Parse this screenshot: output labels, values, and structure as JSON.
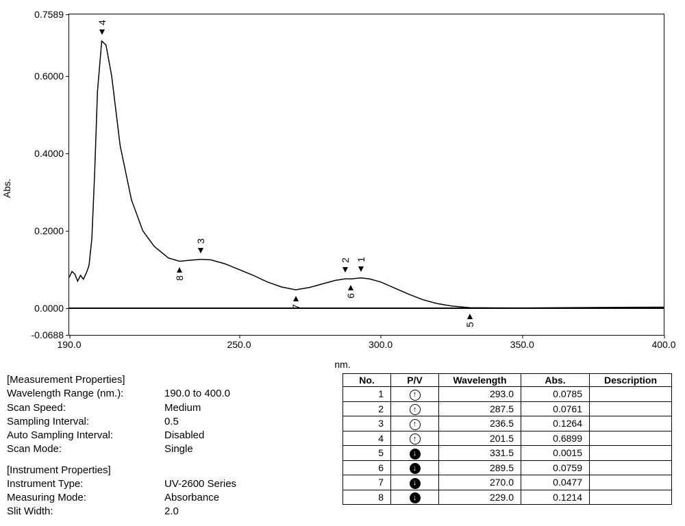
{
  "chart": {
    "type": "line",
    "xlabel": "nm.",
    "ylabel": "Abs.",
    "xlim": [
      190.0,
      400.0
    ],
    "ylim": [
      -0.0688,
      0.7589
    ],
    "xticks": [
      190.0,
      250.0,
      300.0,
      350.0,
      400.0
    ],
    "xtick_labels": [
      "190.0",
      "250.0",
      "300.0",
      "350.0",
      "400.0"
    ],
    "yticks": [
      -0.0688,
      0.0,
      0.2,
      0.4,
      0.6,
      0.7589
    ],
    "ytick_labels": [
      "-0.0688",
      "0.0000",
      "0.2000",
      "0.4000",
      "0.6000",
      "0.7589"
    ],
    "line_color": "#000000",
    "line_width": 1.5,
    "background_color": "#ffffff",
    "zero_line_color": "#000000",
    "curve": [
      [
        190.0,
        0.08
      ],
      [
        191.0,
        0.095
      ],
      [
        192.0,
        0.088
      ],
      [
        193.0,
        0.07
      ],
      [
        194.0,
        0.085
      ],
      [
        195.0,
        0.075
      ],
      [
        196.0,
        0.09
      ],
      [
        197.0,
        0.11
      ],
      [
        198.0,
        0.18
      ],
      [
        199.0,
        0.35
      ],
      [
        200.0,
        0.56
      ],
      [
        201.5,
        0.6899
      ],
      [
        203.0,
        0.68
      ],
      [
        205.0,
        0.6
      ],
      [
        208.0,
        0.42
      ],
      [
        212.0,
        0.28
      ],
      [
        216.0,
        0.2
      ],
      [
        220.0,
        0.16
      ],
      [
        225.0,
        0.13
      ],
      [
        229.0,
        0.1214
      ],
      [
        232.0,
        0.1235
      ],
      [
        236.5,
        0.1264
      ],
      [
        240.0,
        0.125
      ],
      [
        245.0,
        0.115
      ],
      [
        250.0,
        0.1
      ],
      [
        255.0,
        0.085
      ],
      [
        260.0,
        0.068
      ],
      [
        265.0,
        0.055
      ],
      [
        270.0,
        0.0477
      ],
      [
        275.0,
        0.054
      ],
      [
        280.0,
        0.064
      ],
      [
        284.0,
        0.072
      ],
      [
        287.5,
        0.0761
      ],
      [
        289.5,
        0.0759
      ],
      [
        293.0,
        0.0785
      ],
      [
        296.0,
        0.076
      ],
      [
        300.0,
        0.068
      ],
      [
        305.0,
        0.052
      ],
      [
        310.0,
        0.036
      ],
      [
        315.0,
        0.022
      ],
      [
        320.0,
        0.012
      ],
      [
        325.0,
        0.006
      ],
      [
        331.5,
        0.0015
      ],
      [
        340.0,
        0.001
      ],
      [
        350.0,
        0.0008
      ],
      [
        360.0,
        0.0012
      ],
      [
        370.0,
        0.0018
      ],
      [
        380.0,
        0.0022
      ],
      [
        390.0,
        0.0026
      ],
      [
        400.0,
        0.0028
      ]
    ],
    "markers": [
      {
        "n": "4",
        "x": 201.5,
        "y": 0.6899,
        "dir": "down",
        "pos": "above"
      },
      {
        "n": "8",
        "x": 229.0,
        "y": 0.1214,
        "dir": "up",
        "pos": "below"
      },
      {
        "n": "3",
        "x": 236.5,
        "y": 0.1264,
        "dir": "down",
        "pos": "above"
      },
      {
        "n": "7",
        "x": 270.0,
        "y": 0.0477,
        "dir": "up",
        "pos": "below"
      },
      {
        "n": "2",
        "x": 287.5,
        "y": 0.0761,
        "dir": "down",
        "pos": "above"
      },
      {
        "n": "6",
        "x": 289.5,
        "y": 0.0759,
        "dir": "up",
        "pos": "below"
      },
      {
        "n": "1",
        "x": 293.0,
        "y": 0.0785,
        "dir": "down",
        "pos": "above"
      },
      {
        "n": "5",
        "x": 331.5,
        "y": 0.0015,
        "dir": "up",
        "pos": "below"
      }
    ]
  },
  "measurement_properties": {
    "heading": "[Measurement Properties]",
    "rows": [
      {
        "key": "Wavelength Range (nm.):",
        "val": "190.0 to 400.0"
      },
      {
        "key": "Scan Speed:",
        "val": "Medium"
      },
      {
        "key": "Sampling Interval:",
        "val": "0.5"
      },
      {
        "key": "Auto Sampling Interval:",
        "val": "Disabled"
      },
      {
        "key": "Scan Mode:",
        "val": "Single"
      }
    ]
  },
  "instrument_properties": {
    "heading": "[Instrument Properties]",
    "rows": [
      {
        "key": "Instrument Type:",
        "val": "UV-2600 Series"
      },
      {
        "key": "Measuring Mode:",
        "val": "Absorbance"
      },
      {
        "key": "Slit Width:",
        "val": "2.0"
      }
    ]
  },
  "peak_table": {
    "columns": [
      "No.",
      "P/V",
      "Wavelength",
      "Abs.",
      "Description"
    ],
    "col_widths": [
      "70px",
      "70px",
      "120px",
      "100px",
      "120px"
    ],
    "rows": [
      {
        "no": "1",
        "pv": "peak",
        "wavelength": "293.0",
        "abs": "0.0785",
        "desc": ""
      },
      {
        "no": "2",
        "pv": "peak",
        "wavelength": "287.5",
        "abs": "0.0761",
        "desc": ""
      },
      {
        "no": "3",
        "pv": "peak",
        "wavelength": "236.5",
        "abs": "0.1264",
        "desc": ""
      },
      {
        "no": "4",
        "pv": "peak",
        "wavelength": "201.5",
        "abs": "0.6899",
        "desc": ""
      },
      {
        "no": "5",
        "pv": "valley",
        "wavelength": "331.5",
        "abs": "0.0015",
        "desc": ""
      },
      {
        "no": "6",
        "pv": "valley",
        "wavelength": "289.5",
        "abs": "0.0759",
        "desc": ""
      },
      {
        "no": "7",
        "pv": "valley",
        "wavelength": "270.0",
        "abs": "0.0477",
        "desc": ""
      },
      {
        "no": "8",
        "pv": "valley",
        "wavelength": "229.0",
        "abs": "0.1214",
        "desc": ""
      }
    ]
  }
}
